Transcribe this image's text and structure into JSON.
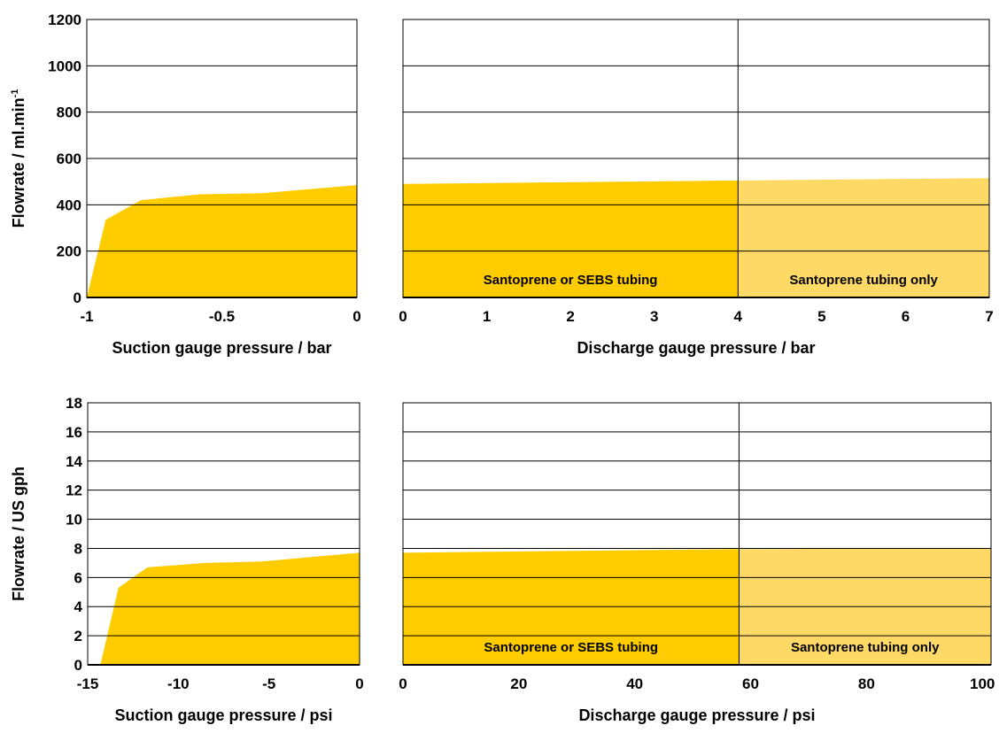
{
  "colors": {
    "fill_main": "#FFCC00",
    "fill_light": "#FFD966",
    "grid": "#000000"
  },
  "chart_data": [
    {
      "id": "top-left",
      "type": "area",
      "xlabel": "Suction gauge pressure / bar",
      "ylabel": "Flowrate / ml.min",
      "ylabel_sup": "-1",
      "xlim": [
        -1,
        0
      ],
      "ylim": [
        0,
        1200
      ],
      "xticks": [
        -1,
        -0.5,
        0
      ],
      "xtick_labels": [
        "-1",
        "-0.5",
        "0"
      ],
      "yticks": [
        0,
        200,
        400,
        600,
        800,
        1000,
        1200
      ],
      "ytick_labels": [
        "0",
        "200",
        "400",
        "600",
        "800",
        "1000",
        "1200"
      ],
      "grid": "horizontal",
      "x": [
        -1,
        -0.93,
        -0.8,
        -0.58,
        -0.35,
        0
      ],
      "y": [
        0,
        335,
        420,
        445,
        450,
        485
      ]
    },
    {
      "id": "top-right",
      "type": "area",
      "xlabel": "Discharge gauge pressure / bar",
      "ylabel": "",
      "xlim": [
        0,
        7
      ],
      "ylim": [
        0,
        1200
      ],
      "xticks": [
        0,
        1,
        2,
        3,
        4,
        5,
        6,
        7
      ],
      "xtick_labels": [
        "0",
        "1",
        "2",
        "3",
        "4",
        "5",
        "6",
        "7"
      ],
      "yticks": [
        0,
        200,
        400,
        600,
        800,
        1000,
        1200
      ],
      "grid": "horizontal",
      "divider_x": 4,
      "x": [
        0,
        4,
        7
      ],
      "y": [
        490,
        505,
        515
      ],
      "regions": [
        {
          "from": 0,
          "to": 4,
          "label": "Santoprene or SEBS tubing",
          "shade": "main"
        },
        {
          "from": 4,
          "to": 7,
          "label": "Santoprene tubing only",
          "shade": "light"
        }
      ]
    },
    {
      "id": "bottom-left",
      "type": "area",
      "xlabel": "Suction gauge pressure / psi",
      "ylabel": "Flowrate / US gph",
      "xlim": [
        -15,
        0
      ],
      "ylim": [
        0,
        18
      ],
      "xticks": [
        -15,
        -10,
        -5,
        0
      ],
      "xtick_labels": [
        "-15",
        "-10",
        "-5",
        "0"
      ],
      "yticks": [
        0,
        2,
        4,
        6,
        8,
        10,
        12,
        14,
        16,
        18
      ],
      "ytick_labels": [
        "0",
        "2",
        "4",
        "6",
        "8",
        "10",
        "12",
        "14",
        "16",
        "18"
      ],
      "grid": "horizontal",
      "x": [
        -14.3,
        -13.3,
        -11.7,
        -8.5,
        -5.4,
        0
      ],
      "y": [
        0,
        5.3,
        6.7,
        7.0,
        7.1,
        7.7
      ]
    },
    {
      "id": "bottom-right",
      "type": "area",
      "xlabel": "Discharge gauge pressure / psi",
      "ylabel": "",
      "xlim": [
        0,
        101.5
      ],
      "ylim": [
        0,
        18
      ],
      "xticks": [
        0,
        20,
        40,
        60,
        80,
        100
      ],
      "xtick_labels": [
        "0",
        "20",
        "40",
        "60",
        "80",
        "100"
      ],
      "yticks": [
        0,
        2,
        4,
        6,
        8,
        10,
        12,
        14,
        16,
        18
      ],
      "grid": "horizontal",
      "divider_x": 58,
      "x": [
        0,
        58,
        101.5
      ],
      "y": [
        7.7,
        7.95,
        8.0
      ],
      "regions": [
        {
          "from": 0,
          "to": 58,
          "label": "Santoprene or SEBS tubing",
          "shade": "main"
        },
        {
          "from": 58,
          "to": 101.5,
          "label": "Santoprene tubing only",
          "shade": "light"
        }
      ]
    }
  ]
}
